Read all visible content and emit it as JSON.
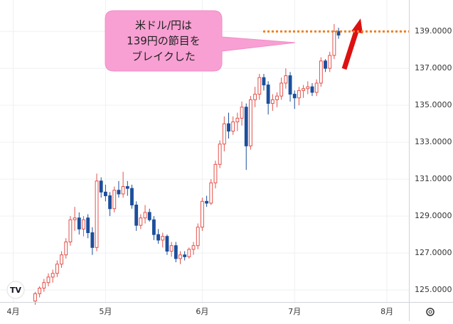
{
  "chart_data": {
    "type": "candlestick",
    "annotation": [
      "米ドル/円は",
      "139円の節目を",
      "ブレイクした"
    ],
    "up_color": "#e2514a",
    "down_color": "#1c4f9c",
    "reference_line": {
      "value": 139,
      "color": "#f07f1e"
    },
    "grid": true,
    "xlim": [
      -8,
      85
    ],
    "xticks": [
      {
        "value": -5,
        "label": "4月"
      },
      {
        "value": 16,
        "label": "5月"
      },
      {
        "value": 38,
        "label": "6月"
      },
      {
        "value": 59,
        "label": "7月"
      },
      {
        "value": 80,
        "label": "8月"
      }
    ],
    "ylim": [
      124.35,
      140.7
    ],
    "yticks": [
      {
        "value": 125,
        "label": "125.0000"
      },
      {
        "value": 127,
        "label": "127.0000"
      },
      {
        "value": 129,
        "label": "129.0000"
      },
      {
        "value": 131,
        "label": "131.0000"
      },
      {
        "value": 133,
        "label": "133.0000"
      },
      {
        "value": 135,
        "label": "135.0000"
      },
      {
        "value": 137,
        "label": "137.0000"
      },
      {
        "value": 139,
        "label": "139.0000"
      }
    ],
    "open": [
      124.4,
      124.8,
      125.1,
      125.4,
      125.7,
      125.9,
      126.4,
      126.9,
      127.6,
      128.8,
      128.9,
      128.3,
      128.9,
      128.1,
      127.3,
      130.9,
      130.3,
      130.1,
      129.4,
      130.4,
      130.2,
      130.6,
      130.5,
      129.6,
      128.5,
      128.9,
      129.2,
      128.8,
      128.0,
      127.7,
      127.9,
      127.1,
      127.4,
      126.7,
      126.9,
      126.8,
      127.2,
      127.4,
      128.4,
      129.8,
      129.7,
      130.8,
      131.8,
      132.9,
      134.0,
      133.6,
      134.1,
      134.3,
      134.9,
      132.8,
      135.3,
      135.6,
      136.5,
      136.1,
      135.1,
      135.3,
      135.5,
      136.2,
      136.6,
      135.6,
      135.4,
      135.8,
      135.9,
      136.0,
      135.7,
      136.2,
      137.4,
      137.0,
      137.7,
      139.0
    ],
    "high": [
      124.9,
      125.2,
      125.6,
      125.9,
      126.1,
      126.6,
      127.1,
      127.8,
      129.0,
      129.5,
      129.2,
      129.0,
      129.1,
      128.4,
      131.3,
      131.1,
      130.7,
      130.3,
      130.6,
      130.9,
      131.4,
      130.9,
      130.7,
      129.8,
      129.1,
      129.6,
      129.4,
      129.0,
      128.3,
      128.1,
      128.0,
      127.6,
      127.6,
      127.1,
      127.1,
      127.3,
      127.6,
      128.6,
      130.0,
      130.1,
      131.0,
      132.0,
      133.1,
      134.4,
      134.6,
      134.4,
      134.6,
      135.2,
      135.1,
      135.5,
      136.0,
      136.7,
      136.7,
      136.3,
      135.6,
      135.7,
      136.5,
      137.0,
      136.8,
      135.8,
      136.0,
      136.1,
      136.3,
      136.2,
      136.4,
      137.6,
      137.5,
      137.9,
      139.4,
      139.2
    ],
    "low": [
      124.2,
      124.6,
      124.9,
      125.2,
      125.4,
      125.7,
      126.2,
      126.7,
      127.4,
      128.2,
      128.0,
      127.9,
      127.8,
      126.9,
      127.1,
      130.0,
      129.8,
      129.0,
      129.2,
      130.0,
      130.0,
      130.1,
      129.4,
      128.2,
      128.3,
      128.6,
      128.7,
      127.7,
      127.5,
      127.3,
      126.9,
      126.8,
      126.5,
      126.4,
      126.6,
      126.7,
      126.9,
      127.2,
      128.2,
      129.5,
      129.6,
      130.5,
      131.6,
      132.5,
      133.2,
      133.4,
      133.6,
      133.9,
      131.5,
      132.6,
      134.9,
      135.3,
      135.8,
      134.5,
      134.7,
      134.9,
      135.3,
      135.9,
      135.2,
      134.8,
      135.0,
      135.4,
      135.6,
      135.5,
      135.5,
      136.0,
      136.8,
      136.8,
      137.5,
      138.6
    ],
    "close": [
      124.8,
      125.1,
      125.4,
      125.7,
      125.9,
      126.4,
      126.9,
      127.6,
      128.8,
      128.9,
      128.3,
      128.8,
      128.1,
      127.3,
      130.9,
      130.3,
      130.1,
      129.4,
      130.4,
      130.2,
      130.6,
      130.5,
      129.6,
      128.5,
      128.9,
      129.2,
      128.8,
      128.0,
      127.7,
      127.9,
      127.1,
      127.4,
      126.7,
      126.9,
      126.8,
      127.2,
      127.4,
      128.4,
      129.8,
      129.7,
      130.8,
      131.8,
      132.9,
      134.0,
      133.6,
      134.1,
      134.3,
      134.9,
      132.8,
      135.3,
      135.6,
      136.5,
      136.1,
      135.1,
      135.3,
      135.5,
      136.2,
      136.6,
      135.6,
      135.4,
      135.8,
      135.9,
      136.0,
      135.7,
      136.2,
      137.4,
      137.0,
      137.7,
      139.0,
      138.8
    ]
  }
}
